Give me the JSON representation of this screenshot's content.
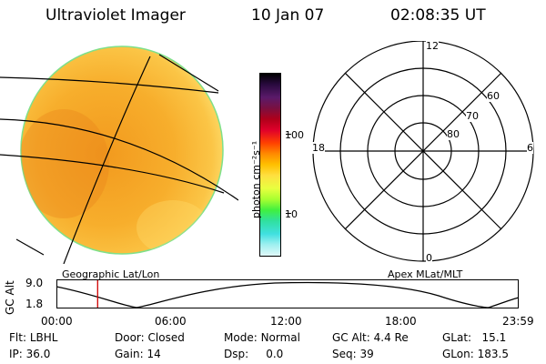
{
  "header": {
    "title": "Ultraviolet Imager",
    "date": "10 Jan 07",
    "time": "02:08:35 UT"
  },
  "colorbar": {
    "unit_label": "photon cm⁻²s⁻¹",
    "ticks": [
      "100",
      "10"
    ],
    "colors": [
      "#000000",
      "#2a0a3f",
      "#5a1a6a",
      "#7a1040",
      "#b0001a",
      "#e0002a",
      "#ff4000",
      "#ff8a00",
      "#ffc000",
      "#ffe040",
      "#e8ff40",
      "#a8ff30",
      "#40f040",
      "#30e0a0",
      "#40e0e0",
      "#a0f0f0",
      "#e0f8f8"
    ]
  },
  "globe": {
    "colors": {
      "fill": "#f7b02a",
      "rim": "#7fe08a",
      "grid": "#000000"
    }
  },
  "polar": {
    "mlt_labels": {
      "top": "12",
      "left": "18",
      "right": "6",
      "bottom": "0"
    },
    "mlat_labels": [
      "60",
      "70",
      "80"
    ]
  },
  "panel_labels": {
    "left": "Geographic Lat/Lon",
    "right": "Apex MLat/MLT"
  },
  "alt_plot": {
    "ylabel": "GC Alt",
    "yticks": [
      "9.0",
      "1.8"
    ],
    "xticks": [
      "00:00",
      "06:00",
      "12:00",
      "18:00",
      "23:59"
    ],
    "marker_time": "02:08:35",
    "marker_color": "#d00000"
  },
  "footer": {
    "row1": [
      {
        "label": "Flt:",
        "value": "LBHL"
      },
      {
        "label": "Door:",
        "value": "Closed"
      },
      {
        "label": "Mode:",
        "value": "Normal"
      },
      {
        "label": "GC Alt:",
        "value": "4.4 Re"
      },
      {
        "label": "GLat:",
        "value": "15.1"
      }
    ],
    "row2": [
      {
        "label": "IP:",
        "value": "36.0"
      },
      {
        "label": "Gain:",
        "value": "14"
      },
      {
        "label": "Dsp:",
        "value": "0.0"
      },
      {
        "label": "Seq:",
        "value": "39"
      },
      {
        "label": "GLon:",
        "value": "183.5"
      }
    ]
  }
}
